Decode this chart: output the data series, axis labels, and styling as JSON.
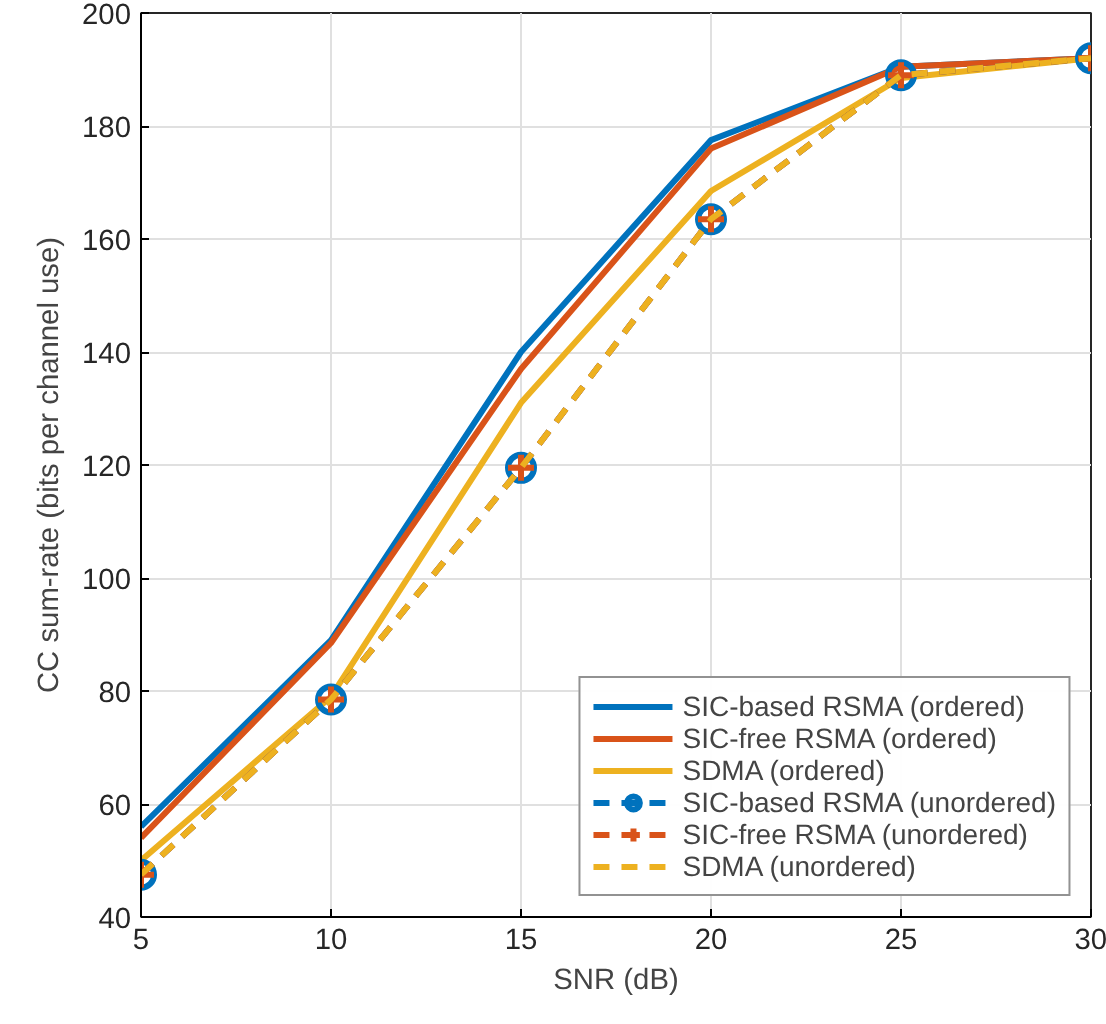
{
  "chart_data": {
    "type": "line",
    "xlabel": "SNR (dB)",
    "ylabel": "CC sum-rate (bits per channel use)",
    "x": [
      5,
      10,
      15,
      20,
      25,
      30
    ],
    "xlim": [
      5,
      30
    ],
    "xticks": [
      5,
      10,
      15,
      20,
      25,
      30
    ],
    "ylim": [
      40,
      200
    ],
    "yticks": [
      40,
      60,
      80,
      100,
      120,
      140,
      160,
      180,
      200
    ],
    "grid": true,
    "legend": "bottom right",
    "series": [
      {
        "name": "SIC-based RSMA (ordered)",
        "color": "#0072bd",
        "values": [
          56,
          89,
          140,
          177.5,
          190.5,
          192
        ],
        "line_style": "solid",
        "marker": "none"
      },
      {
        "name": "SIC-free RSMA (ordered)",
        "color": "#d95319",
        "values": [
          54,
          88.5,
          137,
          176,
          190.5,
          192
        ],
        "line_style": "solid",
        "marker": "none"
      },
      {
        "name": "SDMA (ordered)",
        "color": "#edb120",
        "values": [
          50,
          79,
          131,
          168.5,
          188.5,
          192
        ],
        "line_style": "solid",
        "marker": "none"
      },
      {
        "name": "SIC-based RSMA (unordered)",
        "color": "#0072bd",
        "values": [
          47.5,
          78.5,
          119.5,
          163.5,
          189,
          192
        ],
        "line_style": "dashed",
        "marker": "circle"
      },
      {
        "name": "SIC-free RSMA (unordered)",
        "color": "#d95319",
        "values": [
          47.5,
          78.5,
          119.5,
          163.5,
          189,
          192
        ],
        "line_style": "dashed",
        "marker": "cross"
      },
      {
        "name": "SDMA (unordered)",
        "color": "#edb120",
        "values": [
          47.5,
          78.5,
          119.5,
          163.5,
          189,
          192
        ],
        "line_style": "dashed",
        "marker": "none"
      }
    ]
  }
}
